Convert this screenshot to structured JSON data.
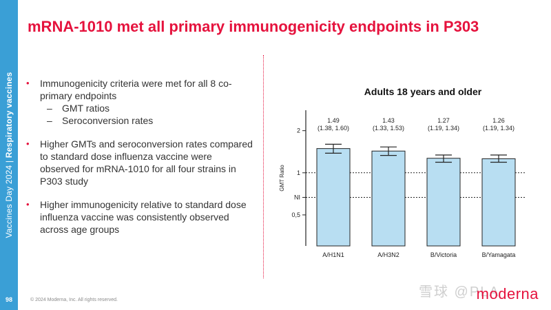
{
  "sidebar": {
    "event": "Vaccines Day 2024",
    "separator": " | ",
    "section": "Respiratory vaccines",
    "page_number": "98"
  },
  "title": "mRNA-1010 met all primary immunogenicity endpoints in P303",
  "bullets": [
    {
      "text": "Immunogenicity criteria were met for all 8 co-primary endpoints"
    },
    {
      "text": "Higher GMTs and seroconversion rates compared to standard dose influenza vaccine were observed for mRNA-1010 for all four strains in P303 study"
    },
    {
      "text": "Higher immunogenicity relative to standard dose influenza vaccine was consistently observed across age groups"
    }
  ],
  "sub_bullets": [
    {
      "dash": "–",
      "text": "GMT ratios"
    },
    {
      "dash": "–",
      "text": "Seroconversion rates"
    }
  ],
  "bullet_marker": "•",
  "chart_data": {
    "type": "bar",
    "title": "Adults 18 years and older",
    "xlabel": "",
    "ylabel": "GMT Ratio",
    "y_scale": "log",
    "ylim": [
      0.3,
      2.8
    ],
    "yticks": [
      {
        "value": 2,
        "label": "2",
        "gridline": false
      },
      {
        "value": 1,
        "label": "1",
        "gridline": true
      },
      {
        "value": 0.667,
        "label": "NI",
        "gridline": true
      },
      {
        "value": 0.5,
        "label": "0,5",
        "gridline": false
      }
    ],
    "categories": [
      "A/H1N1",
      "A/H3N2",
      "B/Victoria",
      "B/Yamagata"
    ],
    "values": [
      1.49,
      1.43,
      1.27,
      1.26
    ],
    "ci_lower": [
      1.38,
      1.33,
      1.19,
      1.19
    ],
    "ci_upper": [
      1.6,
      1.53,
      1.34,
      1.34
    ],
    "value_labels": [
      "1.49",
      "1.43",
      "1.27",
      "1.26"
    ],
    "ci_labels": [
      "(1.38, 1.60)",
      "(1.33, 1.53)",
      "(1.19, 1.34)",
      "(1.19, 1.34)"
    ],
    "bar_color": "#b8def2",
    "bar_stroke": "#222222"
  },
  "footer": "© 2024 Moderna, Inc. All rights reserved.",
  "watermark": "雪球 @PLA",
  "logo": "moderna",
  "colors": {
    "accent": "#e5123d",
    "sidebar": "#3a9fd6"
  }
}
